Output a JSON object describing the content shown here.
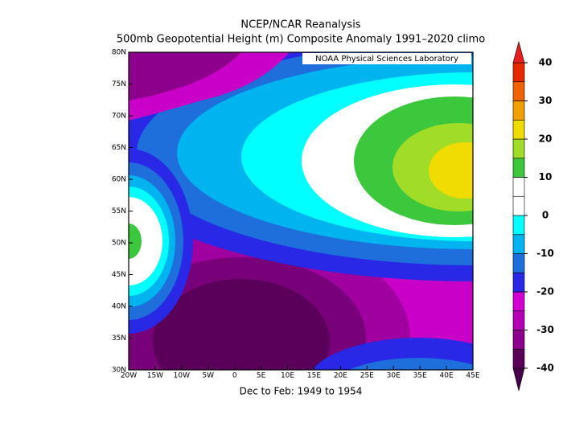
{
  "title": "NCEP/NCAR Reanalysis",
  "subtitle": "500mb Geopotential Height (m) Composite Anomaly 1991–2020 climo",
  "credit": "NOAA Physical Sciences Laboratory",
  "caption": "Dec to Feb: 1949 to 1954",
  "xlim": [
    -20,
    45
  ],
  "ylim": [
    30,
    80
  ],
  "xticks": [
    {
      "value": -20,
      "label": "20W"
    },
    {
      "value": -15,
      "label": "15W"
    },
    {
      "value": -10,
      "label": "10W"
    },
    {
      "value": -5,
      "label": "5W"
    },
    0,
    {
      "value": 5,
      "label": "5E"
    },
    {
      "value": 10,
      "label": "10E"
    },
    {
      "value": 15,
      "label": "15E"
    },
    {
      "value": 20,
      "label": "20E"
    },
    {
      "value": 25,
      "label": "25E"
    },
    {
      "value": 30,
      "label": "30E"
    },
    {
      "value": 35,
      "label": "35E"
    },
    {
      "value": 40,
      "label": "40E"
    },
    {
      "value": 45,
      "label": "45E"
    }
  ],
  "yticks": [
    {
      "value": 30,
      "label": "30N"
    },
    {
      "value": 35,
      "label": "35N"
    },
    {
      "value": 40,
      "label": "40N"
    },
    {
      "value": 45,
      "label": "45N"
    },
    {
      "value": 50,
      "label": "50N"
    },
    {
      "value": 55,
      "label": "55N"
    },
    {
      "value": 60,
      "label": "60N"
    },
    {
      "value": 65,
      "label": "65N"
    },
    {
      "value": 70,
      "label": "70N"
    },
    {
      "value": 75,
      "label": "75N"
    },
    {
      "value": 80,
      "label": "80N"
    }
  ],
  "colorbar": {
    "lim": [
      -40,
      40
    ],
    "bounds": [
      -40,
      -35,
      -30,
      -25,
      -20,
      -15,
      -10,
      -5,
      0,
      5,
      10,
      15,
      20,
      25,
      30,
      35,
      40
    ],
    "colors": [
      "#5a005a",
      "#8c008c",
      "#b400b4",
      "#d200d2",
      "#2828e6",
      "#1e6edc",
      "#00b4f0",
      "#00ffff",
      "#ffffff",
      "#ffffff",
      "#3cc83c",
      "#a0dc28",
      "#f0dc00",
      "#f0a000",
      "#f06400",
      "#e62800"
    ],
    "under_color": "#46004a",
    "over_color": "#e61e1e",
    "ticks": [
      -40,
      -30,
      -20,
      -10,
      0,
      10,
      20,
      30,
      40
    ]
  }
}
